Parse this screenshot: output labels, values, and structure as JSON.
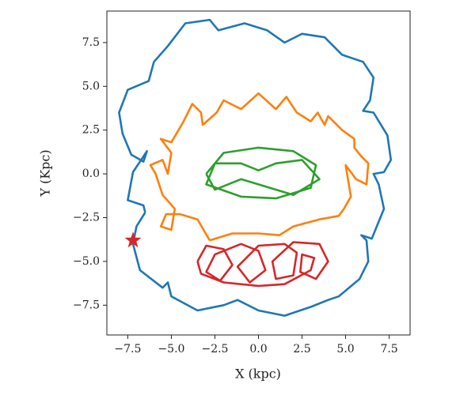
{
  "chart_data": {
    "type": "line",
    "xlabel": "X (kpc)",
    "ylabel": "Y (Kpc)",
    "xlim": [
      -8.7,
      8.7
    ],
    "ylim": [
      -9.2,
      9.3
    ],
    "xticks": [
      {
        "value": -7.5,
        "label": "−7.5"
      },
      {
        "value": -5,
        "label": "−5.0"
      },
      {
        "value": -2.5,
        "label": "−2.5"
      },
      {
        "value": 0,
        "label": "0.0"
      },
      2.5,
      {
        "value": 5,
        "label": "5.0"
      },
      7.5
    ],
    "yticks": [
      {
        "value": -7.5,
        "label": "−7.5"
      },
      {
        "value": -5,
        "label": "−5.0"
      },
      {
        "value": -2.5,
        "label": "−2.5"
      },
      {
        "value": 0,
        "label": "0.0"
      },
      2.5,
      {
        "value": 5,
        "label": "5.0"
      },
      7.5
    ],
    "grid": false,
    "series": [
      {
        "color": "#1f77b4",
        "x": [
          -6.5,
          -7.0,
          -7.2,
          -6.8,
          -5.5,
          -5.2,
          -5.0,
          -3.5,
          -2.0,
          -1.2,
          0,
          1.5,
          3.0,
          4.0,
          4.6,
          5.8,
          6.3,
          6.2,
          5.9,
          6.5,
          7.2,
          6.9,
          6.6,
          7.2,
          7.6,
          7.4,
          6.6,
          6.0,
          6.4,
          6.6,
          6.0,
          4.8,
          3.8,
          2.5,
          1.5,
          0.5,
          -0.8,
          -2.3,
          -2.8,
          -4.2,
          -5.2,
          -6.0,
          -6.3,
          -7.5,
          -8.0,
          -7.8,
          -7.3,
          -6.6,
          -6.4,
          -7.2,
          -7.5,
          -6.6,
          -6.5
        ],
        "values": [
          -2.2,
          -3.0,
          -4.0,
          -5.5,
          -6.5,
          -6.2,
          -7.0,
          -7.8,
          -7.5,
          -7.2,
          -7.8,
          -8.1,
          -7.6,
          -7.2,
          -7.0,
          -6.0,
          -5.0,
          -3.8,
          -3.5,
          -3.7,
          -2.0,
          -0.6,
          0,
          0.1,
          0.8,
          2.2,
          3.5,
          3.6,
          4.2,
          5.5,
          6.4,
          6.8,
          7.8,
          8.0,
          7.5,
          8.2,
          8.6,
          8.2,
          8.8,
          8.6,
          7.3,
          6.4,
          5.3,
          4.8,
          3.5,
          2.3,
          1.1,
          0.7,
          1.3,
          0.1,
          -1.5,
          -1.8,
          -2.2
        ]
      },
      {
        "color": "#ff7f0e",
        "x": [
          -2.8,
          -3.5,
          -4.5,
          -5.3,
          -5.6,
          -5.0,
          -4.8,
          -5.5,
          -5.9,
          -6.2,
          -5.5,
          -5.2,
          -5.0,
          -5.6,
          -5.0,
          -4.3,
          -3.8,
          -3.3,
          -3.2,
          -2.4,
          -2.0,
          -1.0,
          0,
          1.0,
          1.6,
          2.2,
          3.0,
          3.4,
          3.8,
          4.0,
          4.8,
          5.5,
          5.5,
          5.9,
          6.3,
          6.2,
          5.6,
          5.0,
          5.3,
          4.9,
          4.6,
          3.5,
          2.0,
          1.2,
          0,
          -1.5,
          -2.8
        ],
        "values": [
          -3.8,
          -2.6,
          -2.3,
          -2.3,
          -3.0,
          -3.2,
          -2.0,
          -1.2,
          0,
          0.5,
          0.8,
          0,
          1.2,
          2.0,
          1.8,
          3.0,
          4.0,
          3.5,
          2.8,
          3.5,
          4.2,
          3.7,
          4.6,
          3.7,
          4.4,
          3.5,
          3.0,
          3.5,
          2.8,
          3.3,
          2.5,
          2.0,
          1.5,
          1.0,
          0.6,
          -0.6,
          -0.3,
          0.5,
          -1.3,
          -2.0,
          -2.4,
          -2.6,
          -3.0,
          -3.5,
          -3.4,
          -3.4,
          -3.8
        ]
      },
      {
        "color": "#2ca02c",
        "x": [
          -3.0,
          -2.0,
          0,
          2.0,
          3.3,
          3.0,
          1.0,
          -1.0,
          -3.0,
          -2.5,
          -1.0,
          0,
          1.0,
          2.5,
          3.5,
          2.0,
          0,
          -1.0,
          -2.5,
          -3.0
        ],
        "values": [
          0,
          1.2,
          1.5,
          1.3,
          0.5,
          -0.8,
          -1.4,
          -1.3,
          -0.6,
          0.6,
          0.6,
          0.2,
          0.6,
          0.8,
          -0.3,
          -1.2,
          -0.6,
          -0.3,
          -0.9,
          0
        ]
      },
      {
        "color": "#d62728",
        "x": [
          -3.5,
          -3.0,
          -2.0,
          -1.5,
          -2.2,
          -3.0,
          -2.5,
          -1.0,
          0,
          0.4,
          -0.5,
          -1.2,
          0,
          1.5,
          2.2,
          2.0,
          1.0,
          0.8,
          2.0,
          3.5,
          4.0,
          3.3,
          2.4,
          2.5,
          3.2,
          3.0,
          1.5,
          0,
          -2.0,
          -3.3,
          -3.5
        ],
        "values": [
          -5.0,
          -4.1,
          -4.3,
          -5.2,
          -6.1,
          -5.6,
          -4.6,
          -4.0,
          -4.4,
          -5.5,
          -6.2,
          -5.3,
          -4.1,
          -4.0,
          -4.5,
          -5.8,
          -6.0,
          -5.0,
          -3.9,
          -4.0,
          -5.0,
          -6.0,
          -5.6,
          -4.6,
          -4.8,
          -5.5,
          -6.3,
          -6.4,
          -6.2,
          -5.7,
          -5.0
        ]
      }
    ],
    "markers": [
      {
        "x": -7.2,
        "y": -3.8,
        "color": "#d62728",
        "marker": "star"
      }
    ]
  }
}
